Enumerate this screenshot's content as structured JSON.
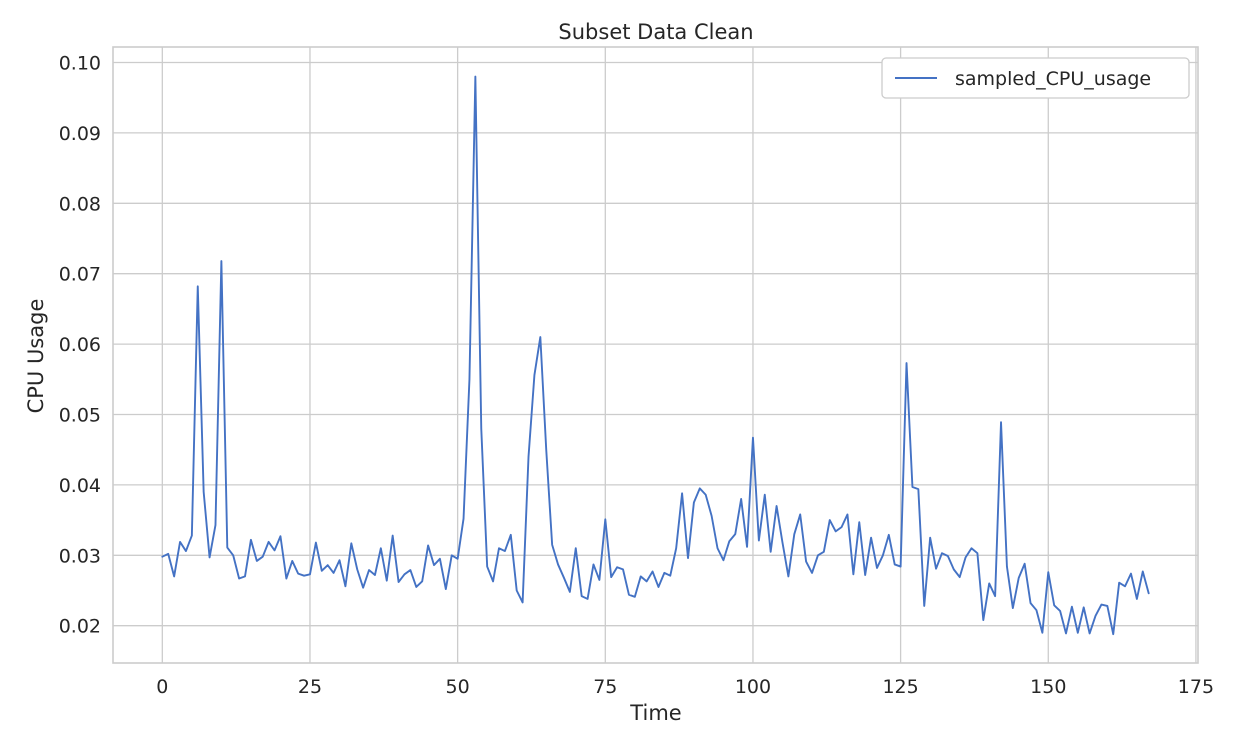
{
  "chart_data": {
    "type": "line",
    "title": "Subset Data Clean",
    "xlabel": "Time",
    "ylabel": "CPU Usage",
    "xlim": [
      -8.35,
      175.35
    ],
    "ylim": [
      0.0147,
      0.1022
    ],
    "xticks": [
      0,
      25,
      50,
      75,
      100,
      125,
      150,
      175
    ],
    "yticks": [
      0.02,
      0.03,
      0.04,
      0.05,
      0.06,
      0.07,
      0.08,
      0.09,
      0.1
    ],
    "xtick_labels": [
      "0",
      "25",
      "50",
      "75",
      "100",
      "125",
      "150",
      "175"
    ],
    "ytick_labels": [
      "0.02",
      "0.03",
      "0.04",
      "0.05",
      "0.06",
      "0.07",
      "0.08",
      "0.09",
      "0.10"
    ],
    "grid": true,
    "legend_position": "top-right",
    "series": [
      {
        "name": "sampled_CPU_usage",
        "color": "#4472c4",
        "x": [
          0,
          1,
          2,
          3,
          4,
          5,
          6,
          7,
          8,
          9,
          10,
          11,
          12,
          13,
          14,
          15,
          16,
          17,
          18,
          19,
          20,
          21,
          22,
          23,
          24,
          25,
          26,
          27,
          28,
          29,
          30,
          31,
          32,
          33,
          34,
          35,
          36,
          37,
          38,
          39,
          40,
          41,
          42,
          43,
          44,
          45,
          46,
          47,
          48,
          49,
          50,
          51,
          52,
          53,
          54,
          55,
          56,
          57,
          58,
          59,
          60,
          61,
          62,
          63,
          64,
          65,
          66,
          67,
          68,
          69,
          70,
          71,
          72,
          73,
          74,
          75,
          76,
          77,
          78,
          79,
          80,
          81,
          82,
          83,
          84,
          85,
          86,
          87,
          88,
          89,
          90,
          91,
          92,
          93,
          94,
          95,
          96,
          97,
          98,
          99,
          100,
          101,
          102,
          103,
          104,
          105,
          106,
          107,
          108,
          109,
          110,
          111,
          112,
          113,
          114,
          115,
          116,
          117,
          118,
          119,
          120,
          121,
          122,
          123,
          124,
          125,
          126,
          127,
          128,
          129,
          130,
          131,
          132,
          133,
          134,
          135,
          136,
          137,
          138,
          139,
          140,
          141,
          142,
          143,
          144,
          145,
          146,
          147,
          148,
          149,
          150,
          151,
          152,
          153,
          154,
          155,
          156,
          157,
          158,
          159,
          160,
          161,
          162,
          163,
          164,
          165,
          166,
          167
        ],
        "y": [
          0.0298,
          0.0302,
          0.027,
          0.0319,
          0.0306,
          0.0328,
          0.0682,
          0.039,
          0.0297,
          0.0343,
          0.0718,
          0.0311,
          0.03,
          0.0267,
          0.027,
          0.0322,
          0.0292,
          0.0298,
          0.0319,
          0.0307,
          0.0327,
          0.0267,
          0.0292,
          0.0274,
          0.0271,
          0.0273,
          0.0318,
          0.0278,
          0.0286,
          0.0275,
          0.0293,
          0.0256,
          0.0317,
          0.028,
          0.0254,
          0.0279,
          0.0272,
          0.031,
          0.0264,
          0.0328,
          0.0262,
          0.0273,
          0.0279,
          0.0255,
          0.0263,
          0.0314,
          0.0286,
          0.0295,
          0.0252,
          0.03,
          0.0295,
          0.0352,
          0.055,
          0.098,
          0.048,
          0.0284,
          0.0263,
          0.031,
          0.0306,
          0.0329,
          0.025,
          0.0233,
          0.044,
          0.0556,
          0.061,
          0.045,
          0.0315,
          0.0287,
          0.0268,
          0.0248,
          0.031,
          0.0242,
          0.0238,
          0.0287,
          0.0265,
          0.0351,
          0.0269,
          0.0283,
          0.028,
          0.0244,
          0.0241,
          0.027,
          0.0263,
          0.0277,
          0.0255,
          0.0275,
          0.0271,
          0.031,
          0.0388,
          0.0296,
          0.0375,
          0.0395,
          0.0386,
          0.0356,
          0.031,
          0.0293,
          0.032,
          0.033,
          0.038,
          0.0312,
          0.0467,
          0.0321,
          0.0386,
          0.0305,
          0.037,
          0.0318,
          0.027,
          0.033,
          0.0358,
          0.0291,
          0.0275,
          0.03,
          0.0305,
          0.035,
          0.0334,
          0.034,
          0.0358,
          0.0273,
          0.0347,
          0.0272,
          0.0325,
          0.0282,
          0.03,
          0.0329,
          0.0287,
          0.0284,
          0.0573,
          0.0397,
          0.0394,
          0.0228,
          0.0325,
          0.0281,
          0.0303,
          0.0299,
          0.028,
          0.0269,
          0.0297,
          0.031,
          0.0303,
          0.0208,
          0.026,
          0.0242,
          0.0489,
          0.0284,
          0.0225,
          0.0268,
          0.0288,
          0.0232,
          0.0222,
          0.019,
          0.0276,
          0.0229,
          0.0221,
          0.0189,
          0.0227,
          0.019,
          0.0226,
          0.0189,
          0.0214,
          0.023,
          0.0228,
          0.0188,
          0.0261,
          0.0256,
          0.0274,
          0.0238,
          0.0277,
          0.0246
        ]
      }
    ]
  }
}
